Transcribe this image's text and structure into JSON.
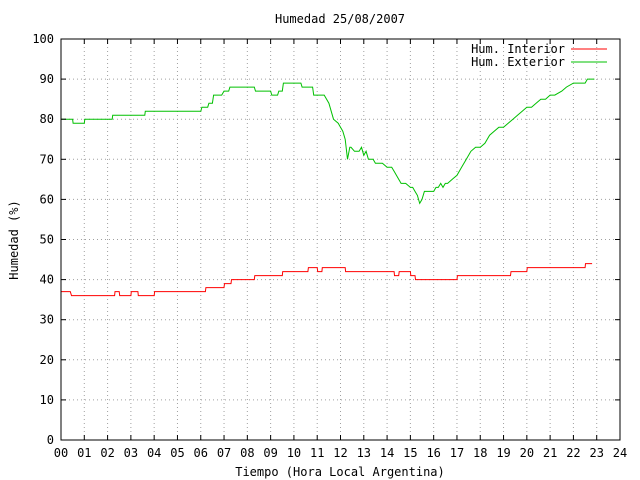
{
  "chart_data": {
    "type": "line",
    "title": "Humedad 25/08/2007",
    "xlabel": "Tiempo (Hora Local Argentina)",
    "ylabel": "Humedad (%)",
    "xlim": [
      0,
      24
    ],
    "ylim": [
      0,
      100
    ],
    "x_ticks": [
      "00",
      "01",
      "02",
      "03",
      "04",
      "05",
      "06",
      "07",
      "08",
      "09",
      "10",
      "11",
      "12",
      "13",
      "14",
      "15",
      "16",
      "17",
      "18",
      "19",
      "20",
      "21",
      "22",
      "23",
      "24"
    ],
    "y_ticks": [
      "0",
      "10",
      "20",
      "30",
      "40",
      "50",
      "60",
      "70",
      "80",
      "90",
      "100"
    ],
    "grid": true,
    "legend_position": "top-right",
    "series": [
      {
        "name": "Hum. Interior",
        "color": "#ff0000",
        "x": [
          0.0,
          0.4,
          0.45,
          1.5,
          1.55,
          2.3,
          2.32,
          2.5,
          2.52,
          3.0,
          3.02,
          3.3,
          3.32,
          4.0,
          4.02,
          5.5,
          5.52,
          5.9,
          5.92,
          6.2,
          6.22,
          7.0,
          7.02,
          7.3,
          7.32,
          8.3,
          8.32,
          9.5,
          9.52,
          10.3,
          10.32,
          10.6,
          10.62,
          11.0,
          11.02,
          11.2,
          11.22,
          12.2,
          12.22,
          14.3,
          14.32,
          14.5,
          14.52,
          15.0,
          15.02,
          15.2,
          15.22,
          17.0,
          17.02,
          18.0,
          18.02,
          19.3,
          19.32,
          20.0,
          20.02,
          21.0,
          21.02,
          22.5,
          22.52,
          22.8
        ],
        "values": [
          37,
          37,
          36,
          36,
          36,
          36,
          37,
          37,
          36,
          36,
          37,
          37,
          36,
          36,
          37,
          37,
          37,
          37,
          37,
          37,
          38,
          38,
          39,
          39,
          40,
          40,
          41,
          41,
          42,
          42,
          42,
          42,
          43,
          43,
          42,
          42,
          43,
          43,
          42,
          42,
          41,
          41,
          42,
          42,
          41,
          41,
          40,
          40,
          41,
          41,
          41,
          41,
          42,
          42,
          43,
          43,
          43,
          43,
          44,
          44
        ]
      },
      {
        "name": "Hum. Exterior",
        "color": "#00c000",
        "x": [
          0.0,
          0.5,
          0.52,
          1.0,
          1.02,
          2.2,
          2.22,
          3.6,
          3.62,
          5.0,
          5.02,
          6.0,
          6.05,
          6.3,
          6.35,
          6.5,
          6.55,
          6.9,
          7.0,
          7.2,
          7.25,
          7.5,
          7.55,
          8.3,
          8.35,
          9.0,
          9.05,
          9.3,
          9.35,
          9.5,
          9.55,
          10.3,
          10.35,
          10.8,
          10.85,
          11.0,
          11.1,
          11.3,
          11.5,
          11.7,
          11.9,
          12.0,
          12.1,
          12.2,
          12.3,
          12.4,
          12.45,
          12.6,
          12.7,
          12.8,
          12.9,
          13.0,
          13.1,
          13.2,
          13.3,
          13.4,
          13.5,
          13.6,
          13.8,
          14.0,
          14.2,
          14.3,
          14.4,
          14.5,
          14.6,
          14.7,
          14.8,
          15.0,
          15.1,
          15.2,
          15.3,
          15.4,
          15.5,
          15.6,
          15.8,
          16.0,
          16.1,
          16.2,
          16.3,
          16.4,
          16.5,
          16.6,
          16.8,
          17.0,
          17.2,
          17.4,
          17.6,
          17.8,
          18.0,
          18.2,
          18.4,
          18.6,
          18.8,
          19.0,
          19.2,
          19.4,
          19.6,
          19.8,
          20.0,
          20.2,
          20.4,
          20.6,
          20.8,
          21.0,
          21.2,
          21.5,
          21.7,
          22.0,
          22.2,
          22.5,
          22.6,
          22.9
        ],
        "values": [
          80,
          80,
          79,
          79,
          80,
          80,
          81,
          81,
          82,
          82,
          82,
          82,
          83,
          83,
          84,
          84,
          86,
          86,
          87,
          87,
          88,
          88,
          88,
          88,
          87,
          87,
          86,
          86,
          87,
          87,
          89,
          89,
          88,
          88,
          86,
          86,
          86,
          86,
          84,
          80,
          79,
          78,
          77,
          75,
          70,
          73,
          73,
          72,
          72,
          72,
          73,
          71,
          72,
          70,
          70,
          70,
          69,
          69,
          69,
          68,
          68,
          67,
          66,
          65,
          64,
          64,
          64,
          63,
          63,
          62,
          61,
          59,
          60,
          62,
          62,
          62,
          63,
          63,
          64,
          63,
          64,
          64,
          65,
          66,
          68,
          70,
          72,
          73,
          73,
          74,
          76,
          77,
          78,
          78,
          79,
          80,
          81,
          82,
          83,
          83,
          84,
          85,
          85,
          86,
          86,
          87,
          88,
          89,
          89,
          89,
          90,
          90
        ]
      }
    ]
  }
}
